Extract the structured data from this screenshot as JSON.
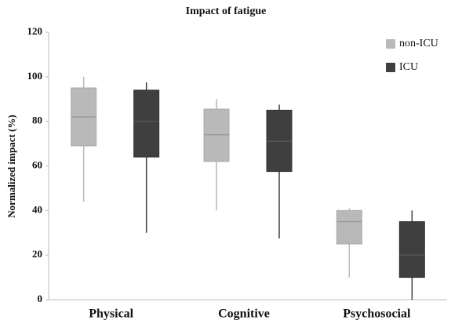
{
  "chart_data": {
    "type": "box",
    "title": "Impact of fatigue",
    "y_label": "Normalized impact (%)",
    "categories": [
      "Physical",
      "Cognitive",
      "Psychosocial"
    ],
    "series": [
      {
        "name": "non-ICU",
        "color": "#b9b9b9",
        "values": [
          {
            "min": 44,
            "q1": 69,
            "median": 82,
            "q3": 95,
            "max": 100
          },
          {
            "min": 40,
            "q1": 62,
            "median": 74,
            "q3": 85.5,
            "max": 90
          },
          {
            "min": 10,
            "q1": 25,
            "median": 35,
            "q3": 40,
            "max": 41
          }
        ]
      },
      {
        "name": "ICU",
        "color": "#3f3f3f",
        "values": [
          {
            "min": 30,
            "q1": 64,
            "median": 80,
            "q3": 94,
            "max": 97.5
          },
          {
            "min": 27.5,
            "q1": 57.5,
            "median": 71,
            "q3": 85,
            "max": 87.5
          },
          {
            "min": 0,
            "q1": 10,
            "median": 20,
            "q3": 35,
            "max": 40
          }
        ]
      }
    ],
    "ylim": [
      0,
      120
    ],
    "yticks": [
      0,
      20,
      40,
      60,
      80,
      100,
      120
    ],
    "legend": "upper right"
  }
}
